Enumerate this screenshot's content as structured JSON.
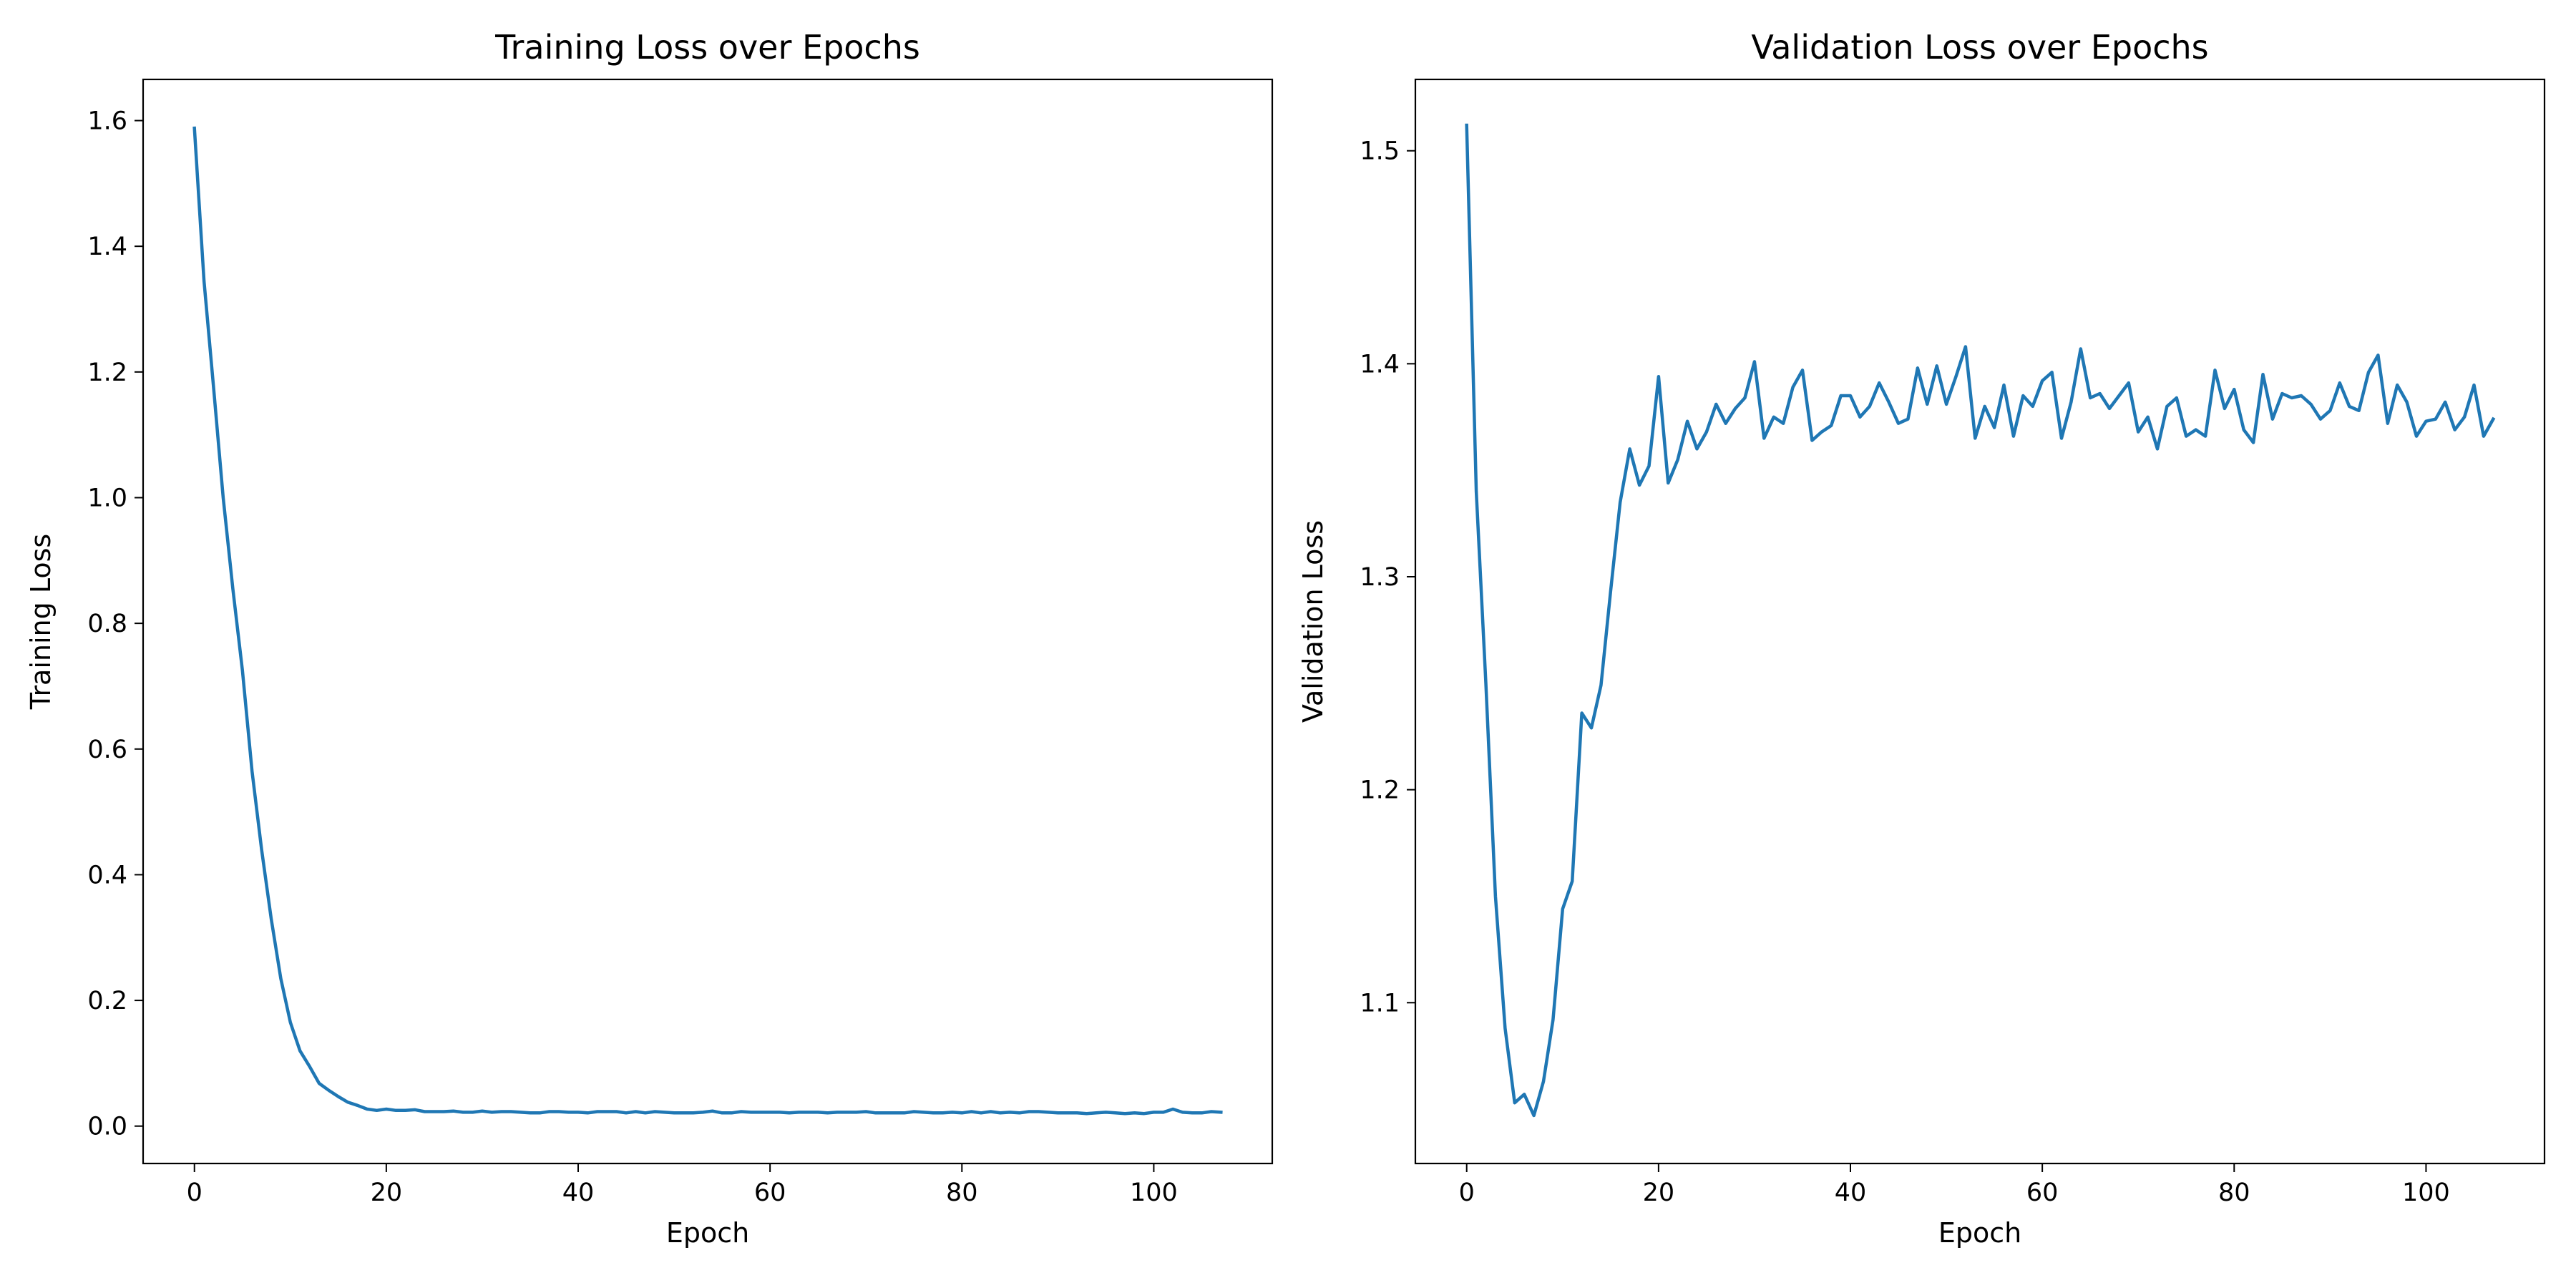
{
  "chart_data": [
    {
      "type": "line",
      "title": "Training Loss over Epochs",
      "xlabel": "Epoch",
      "ylabel": "Training Loss",
      "xlim": [
        -5.35,
        112.35
      ],
      "ylim": [
        -0.0595,
        1.6655
      ],
      "xticks": [
        0,
        20,
        40,
        60,
        80,
        100
      ],
      "yticks": [
        0.0,
        0.2,
        0.4,
        0.6,
        0.8,
        1.0,
        1.2,
        1.4,
        1.6
      ],
      "ytick_labels": [
        "0.0",
        "0.2",
        "0.4",
        "0.6",
        "0.8",
        "1.0",
        "1.2",
        "1.4",
        "1.6"
      ],
      "grid": false,
      "line_color": "#1f77b4",
      "series": [
        {
          "x": [
            0,
            1,
            2,
            3,
            4,
            5,
            6,
            7,
            8,
            9,
            10,
            11,
            12,
            13,
            14,
            15,
            16,
            17,
            18,
            19,
            20,
            21,
            22,
            23,
            24,
            25,
            26,
            27,
            28,
            29,
            30,
            31,
            32,
            33,
            34,
            35,
            36,
            37,
            38,
            39,
            40,
            41,
            42,
            43,
            44,
            45,
            46,
            47,
            48,
            49,
            50,
            51,
            52,
            53,
            54,
            55,
            56,
            57,
            58,
            59,
            60,
            61,
            62,
            63,
            64,
            65,
            66,
            67,
            68,
            69,
            70,
            71,
            72,
            73,
            74,
            75,
            76,
            77,
            78,
            79,
            80,
            81,
            82,
            83,
            84,
            85,
            86,
            87,
            88,
            89,
            90,
            91,
            92,
            93,
            94,
            95,
            96,
            97,
            98,
            99,
            100,
            101,
            102,
            103,
            104,
            105,
            106,
            107
          ],
          "values": [
            1.588,
            1.345,
            1.175,
            1.0,
            0.855,
            0.725,
            0.565,
            0.44,
            0.33,
            0.235,
            0.165,
            0.12,
            0.095,
            0.068,
            0.057,
            0.047,
            0.038,
            0.033,
            0.027,
            0.025,
            0.027,
            0.025,
            0.025,
            0.026,
            0.023,
            0.023,
            0.023,
            0.024,
            0.022,
            0.022,
            0.024,
            0.022,
            0.023,
            0.023,
            0.022,
            0.021,
            0.021,
            0.023,
            0.023,
            0.022,
            0.022,
            0.021,
            0.023,
            0.023,
            0.023,
            0.021,
            0.023,
            0.021,
            0.023,
            0.022,
            0.021,
            0.021,
            0.021,
            0.022,
            0.024,
            0.021,
            0.021,
            0.023,
            0.022,
            0.022,
            0.022,
            0.022,
            0.021,
            0.022,
            0.022,
            0.022,
            0.021,
            0.022,
            0.022,
            0.022,
            0.023,
            0.021,
            0.021,
            0.021,
            0.021,
            0.023,
            0.022,
            0.021,
            0.021,
            0.022,
            0.021,
            0.023,
            0.021,
            0.023,
            0.021,
            0.022,
            0.021,
            0.023,
            0.023,
            0.022,
            0.021,
            0.021,
            0.021,
            0.02,
            0.021,
            0.022,
            0.021,
            0.02,
            0.021,
            0.02,
            0.022,
            0.022,
            0.027,
            0.022,
            0.021,
            0.021,
            0.023,
            0.022
          ]
        }
      ]
    },
    {
      "type": "line",
      "title": "Validation Loss over Epochs",
      "xlabel": "Epoch",
      "ylabel": "Validation Loss",
      "xlim": [
        -5.35,
        112.35
      ],
      "ylim": [
        1.0245,
        1.5335
      ],
      "xticks": [
        0,
        20,
        40,
        60,
        80,
        100
      ],
      "yticks": [
        1.1,
        1.2,
        1.3,
        1.4,
        1.5
      ],
      "ytick_labels": [
        "1.1",
        "1.2",
        "1.3",
        "1.4",
        "1.5"
      ],
      "grid": false,
      "line_color": "#1f77b4",
      "series": [
        {
          "x": [
            0,
            1,
            2,
            3,
            4,
            5,
            6,
            7,
            8,
            9,
            10,
            11,
            12,
            13,
            14,
            15,
            16,
            17,
            18,
            19,
            20,
            21,
            22,
            23,
            24,
            25,
            26,
            27,
            28,
            29,
            30,
            31,
            32,
            33,
            34,
            35,
            36,
            37,
            38,
            39,
            40,
            41,
            42,
            43,
            44,
            45,
            46,
            47,
            48,
            49,
            50,
            51,
            52,
            53,
            54,
            55,
            56,
            57,
            58,
            59,
            60,
            61,
            62,
            63,
            64,
            65,
            66,
            67,
            68,
            69,
            70,
            71,
            72,
            73,
            74,
            75,
            76,
            77,
            78,
            79,
            80,
            81,
            82,
            83,
            84,
            85,
            86,
            87,
            88,
            89,
            90,
            91,
            92,
            93,
            94,
            95,
            96,
            97,
            98,
            99,
            100,
            101,
            102,
            103,
            104,
            105,
            106,
            107
          ],
          "values": [
            1.512,
            1.34,
            1.25,
            1.15,
            1.088,
            1.053,
            1.057,
            1.047,
            1.063,
            1.092,
            1.144,
            1.157,
            1.236,
            1.229,
            1.249,
            1.293,
            1.335,
            1.36,
            1.343,
            1.352,
            1.394,
            1.344,
            1.355,
            1.373,
            1.36,
            1.368,
            1.381,
            1.372,
            1.379,
            1.384,
            1.401,
            1.365,
            1.375,
            1.372,
            1.389,
            1.397,
            1.364,
            1.368,
            1.371,
            1.385,
            1.385,
            1.375,
            1.38,
            1.391,
            1.382,
            1.372,
            1.374,
            1.398,
            1.381,
            1.399,
            1.381,
            1.394,
            1.408,
            1.365,
            1.38,
            1.37,
            1.39,
            1.366,
            1.385,
            1.38,
            1.392,
            1.396,
            1.365,
            1.382,
            1.407,
            1.384,
            1.386,
            1.379,
            1.385,
            1.391,
            1.368,
            1.375,
            1.36,
            1.38,
            1.384,
            1.366,
            1.369,
            1.366,
            1.397,
            1.379,
            1.388,
            1.369,
            1.363,
            1.395,
            1.374,
            1.386,
            1.384,
            1.385,
            1.381,
            1.374,
            1.378,
            1.391,
            1.38,
            1.378,
            1.396,
            1.404,
            1.372,
            1.39,
            1.382,
            1.366,
            1.373,
            1.374,
            1.382,
            1.369,
            1.375,
            1.39,
            1.366,
            1.374
          ]
        }
      ]
    }
  ]
}
